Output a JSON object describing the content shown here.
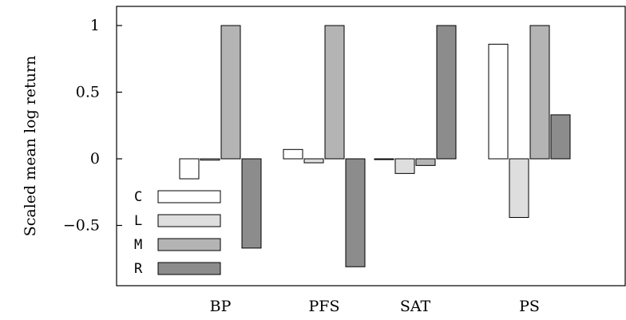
{
  "chart_data": {
    "type": "bar",
    "title": "",
    "xlabel": "",
    "ylabel": "Scaled mean log return",
    "categories": [
      "BP",
      "PFS",
      "SAT",
      "PS"
    ],
    "series": [
      {
        "name": "C",
        "color": "#ffffff",
        "values": [
          -0.15,
          0.07,
          0.0,
          0.86
        ]
      },
      {
        "name": "L",
        "color": "#dedede",
        "values": [
          -0.01,
          -0.03,
          -0.11,
          -0.44
        ]
      },
      {
        "name": "M",
        "color": "#b4b4b4",
        "values": [
          1.0,
          1.0,
          -0.05,
          1.0
        ]
      },
      {
        "name": "R",
        "color": "#8c8c8c",
        "values": [
          -0.67,
          -0.81,
          1.0,
          0.33
        ]
      }
    ],
    "ylim": [
      -0.95,
      1.15
    ],
    "yticks": [
      {
        "value": 1,
        "label": "1"
      },
      {
        "value": 0.5,
        "label": "0.5"
      },
      {
        "value": 0,
        "label": "0"
      },
      {
        "value": -0.5,
        "label": "−0.5"
      }
    ],
    "grid": false,
    "legend_position": "bottom-left"
  }
}
